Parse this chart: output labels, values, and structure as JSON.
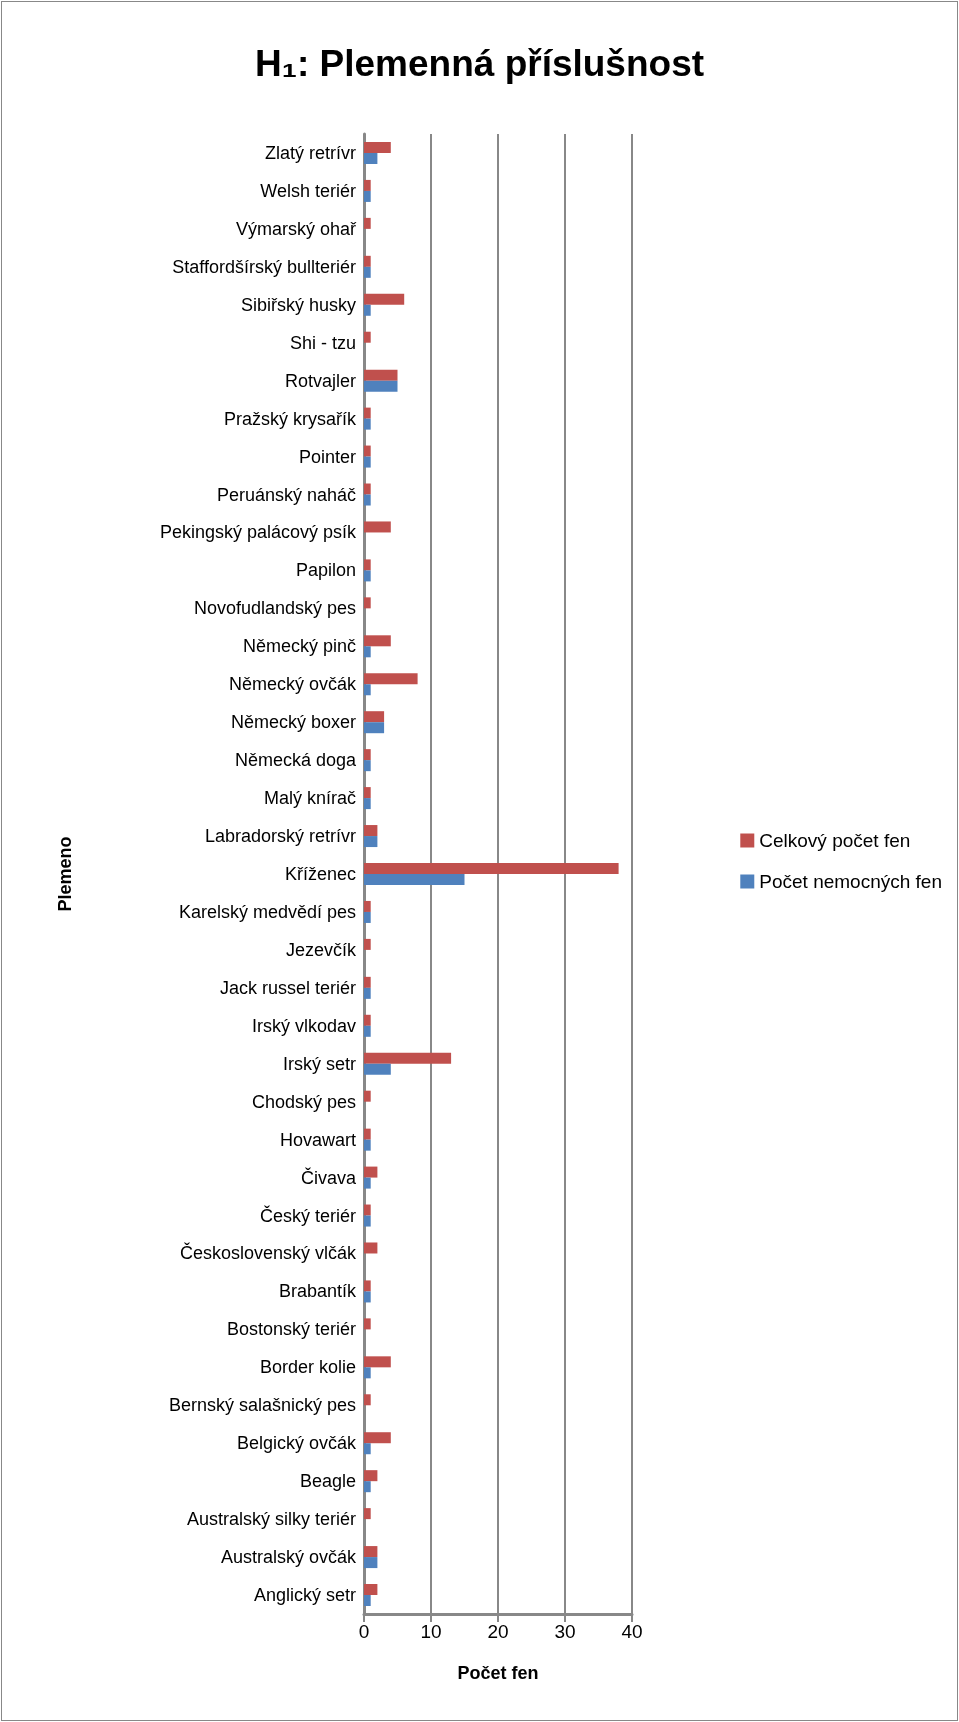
{
  "chart_data": {
    "type": "bar",
    "orientation": "horizontal",
    "title": "H₁: Plemenná příslušnost",
    "xlabel": "Počet fen",
    "ylabel": "Plemeno",
    "categories": [
      "Zlatý retrívr",
      "Welsh teriér",
      "Výmarský ohař",
      "Staffordšírský bullteriér",
      "Sibiřský husky",
      "Shi - tzu",
      "Rotvajler",
      "Pražský krysařík",
      "Pointer",
      "Peruánský naháč",
      "Pekingský palácový psík",
      "Papilon",
      "Novofudlandský pes",
      "Německý pinč",
      "Německý ovčák",
      "Německý boxer",
      "Německá doga",
      "Malý knírač",
      "Labradorský retrívr",
      "Kříženec",
      "Karelský medvědí pes",
      "Jezevčík",
      "Jack russel teriér",
      "Irský vlkodav",
      "Irský setr",
      "Chodský pes",
      "Hovawart",
      "Čivava",
      "Český teriér",
      "Československý vlčák",
      "Brabantík",
      "Bostonský teriér",
      "Border kolie",
      "Bernský salašnický pes",
      "Belgický ovčák",
      "Beagle",
      "Australský silky teriér",
      "Australský ovčák",
      "Anglický setr"
    ],
    "series": [
      {
        "name": "Celkový počet fen",
        "color": "#c0504d",
        "values": [
          4,
          1,
          1,
          1,
          6,
          1,
          5,
          1,
          1,
          1,
          4,
          1,
          1,
          4,
          8,
          3,
          1,
          1,
          2,
          38,
          1,
          1,
          1,
          1,
          13,
          1,
          1,
          2,
          1,
          2,
          1,
          1,
          4,
          1,
          4,
          2,
          1,
          2,
          2
        ]
      },
      {
        "name": "Počet nemocných fen",
        "color": "#4f81bd",
        "values": [
          2,
          1,
          0,
          1,
          1,
          0,
          5,
          1,
          1,
          1,
          0,
          1,
          0,
          1,
          1,
          3,
          1,
          1,
          2,
          15,
          1,
          0,
          1,
          1,
          4,
          0,
          1,
          1,
          1,
          0,
          1,
          0,
          1,
          0,
          1,
          1,
          0,
          2,
          1
        ]
      }
    ],
    "xlim": [
      0,
      40
    ],
    "xticks": [
      0,
      10,
      20,
      30,
      40
    ],
    "grid": "x",
    "legend": "right"
  }
}
